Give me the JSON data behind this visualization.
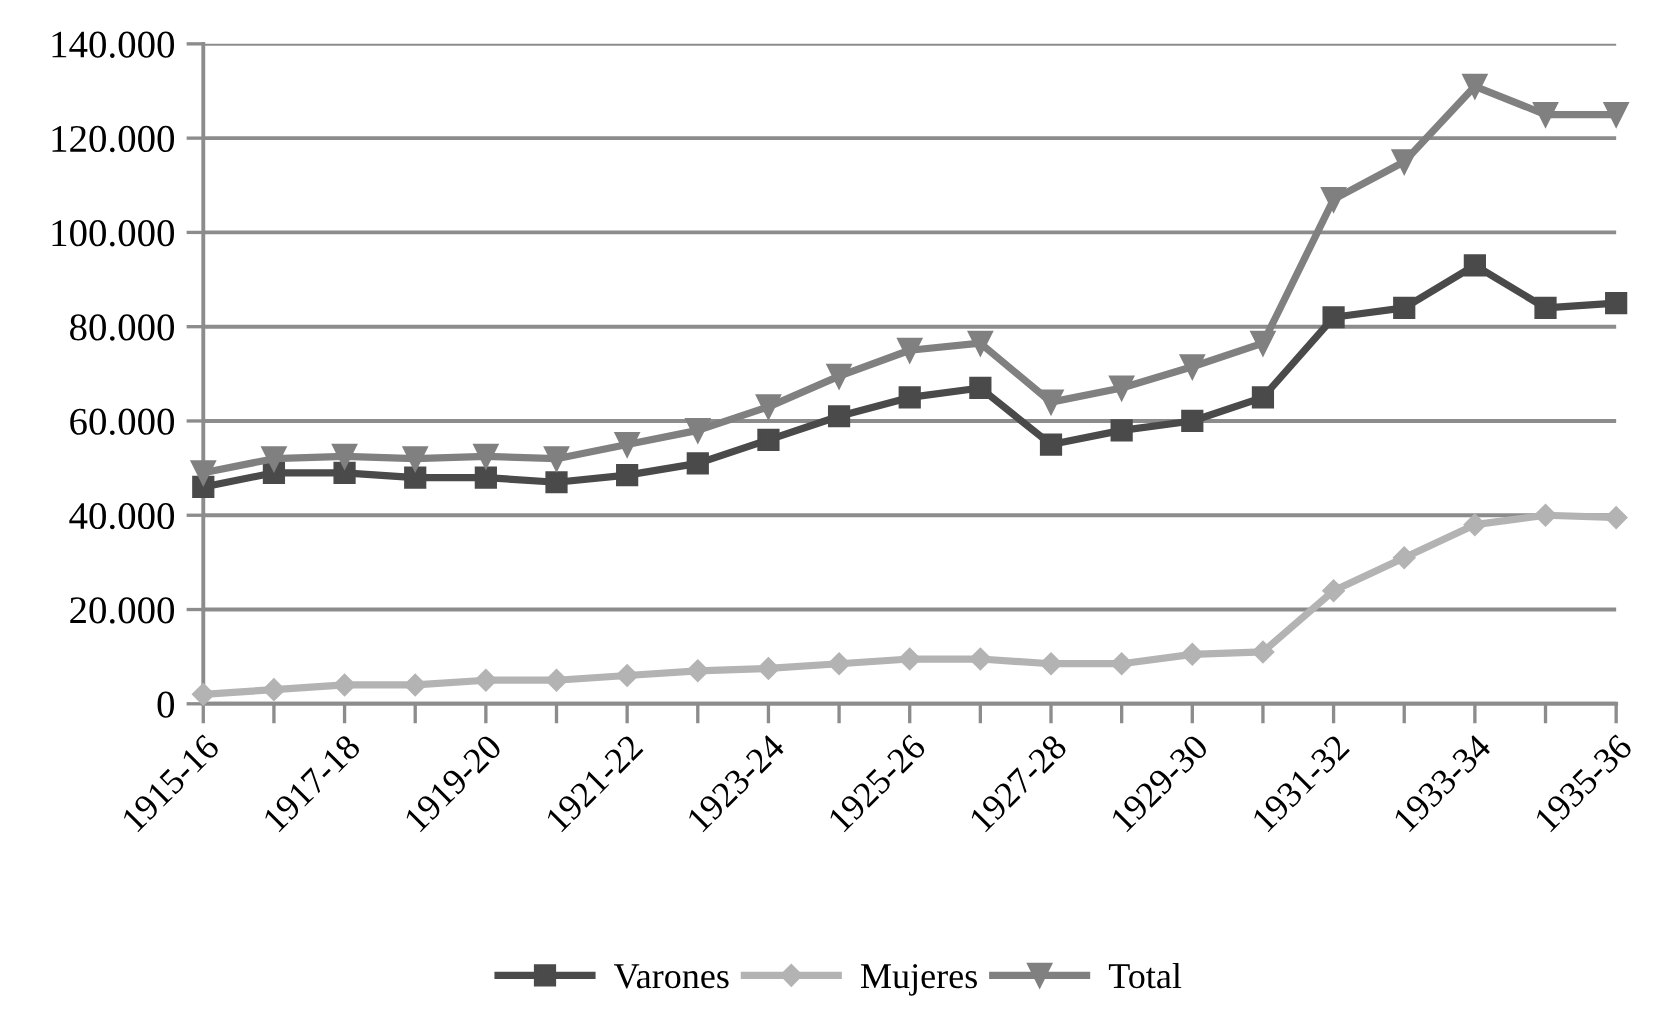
{
  "chart_data": {
    "type": "line",
    "categories": [
      "1915-16",
      null,
      "1917-18",
      null,
      "1919-20",
      null,
      "1921-22",
      null,
      "1923-24",
      null,
      "1925-26",
      null,
      "1927-28",
      null,
      "1929-30",
      null,
      "1931-32",
      null,
      "1933-34",
      null,
      "1935-36"
    ],
    "series": [
      {
        "name": "Varones",
        "color": "#4a4a4a",
        "marker": "square",
        "values": [
          46000,
          49000,
          49000,
          48000,
          48000,
          47000,
          48500,
          51000,
          56000,
          61000,
          65000,
          67000,
          55000,
          58000,
          60000,
          65000,
          82000,
          84000,
          93000,
          84000,
          85000
        ]
      },
      {
        "name": "Mujeres",
        "color": "#b3b3b3",
        "marker": "diamond",
        "values": [
          2000,
          3000,
          4000,
          4000,
          5000,
          5000,
          6000,
          7000,
          7500,
          8500,
          9500,
          9500,
          8500,
          8500,
          10500,
          11000,
          24000,
          31000,
          38000,
          40000,
          39500
        ]
      },
      {
        "name": "Total",
        "color": "#808080",
        "marker": "triangle",
        "values": [
          49000,
          52000,
          52500,
          52000,
          52500,
          52000,
          55000,
          58000,
          63000,
          69500,
          75000,
          76500,
          64000,
          67000,
          71500,
          76500,
          107000,
          115000,
          131000,
          125000,
          125000
        ]
      }
    ],
    "ylim": [
      0,
      140000
    ],
    "yticks": [
      0,
      {
        "value": 20000,
        "label": "20.000"
      },
      {
        "value": 40000,
        "label": "40.000"
      },
      {
        "value": 60000,
        "label": "60.000"
      },
      {
        "value": 80000,
        "label": "80.000"
      },
      {
        "value": 100000,
        "label": "100.000"
      },
      {
        "value": 120000,
        "label": "120.000"
      },
      {
        "value": 140000,
        "label": "140.000"
      }
    ],
    "grid": "y",
    "legend": "bottom",
    "line_style": "solid"
  }
}
